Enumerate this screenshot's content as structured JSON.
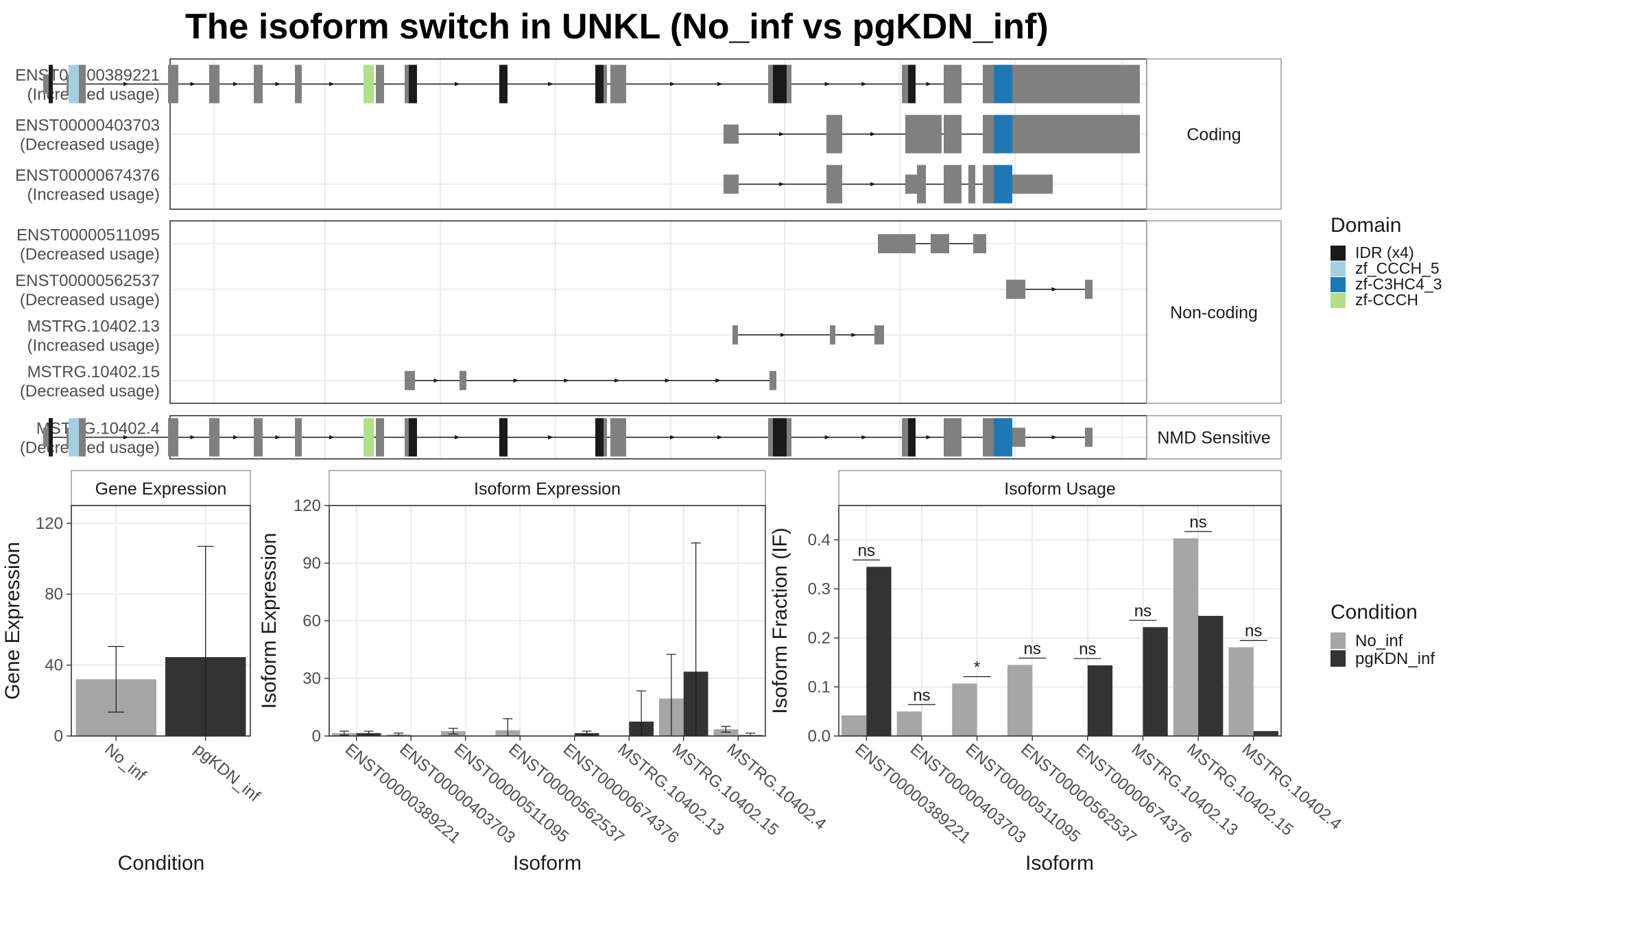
{
  "title": "The isoform switch in UNKL (No_inf vs pgKDN_inf)",
  "colors": {
    "exon": "#808080",
    "IDR (x4)": "#1a1a1a",
    "zf_CCCH_5": "#a6cee3",
    "zf-C3HC4_3": "#1f78b4",
    "zf-CCCH": "#b2df8a",
    "No_inf": "#a6a6a6",
    "pgKDN_inf": "#333333",
    "frame": "#333333",
    "grid": "#ebebeb",
    "strip": "#ffffff",
    "strip_border": "#a0a0a0"
  },
  "structure": {
    "panels": [
      {
        "strip": "Coding",
        "rows": [
          {
            "id": "ENST00000389221",
            "usage": "(Increased usage)",
            "exons": [
              [
                63,
                71,
                "s"
              ],
              [
                71,
                77,
                "IDR (x4)"
              ],
              [
                97,
                100,
                "s"
              ],
              [
                100,
                115,
                "zf_CCCH_5"
              ],
              [
                115,
                125,
                "t"
              ],
              [
                245,
                260,
                "t"
              ],
              [
                305,
                320,
                "t"
              ],
              [
                370,
                383,
                "t"
              ],
              [
                430,
                440,
                "t"
              ],
              [
                530,
                545,
                "zf-CCCH"
              ],
              [
                548,
                560,
                "t"
              ],
              [
                590,
                596,
                "t"
              ],
              [
                596,
                608,
                "IDR (x4)"
              ],
              [
                728,
                740,
                "IDR (x4)"
              ],
              [
                868,
                880,
                "IDR (x4)"
              ],
              [
                880,
                885,
                "t"
              ],
              [
                890,
                902,
                "t"
              ],
              [
                902,
                913,
                "t"
              ],
              [
                1120,
                1127,
                "t"
              ],
              [
                1127,
                1147,
                "IDR (x4)"
              ],
              [
                1147,
                1154,
                "t"
              ],
              [
                1315,
                1324,
                "t"
              ],
              [
                1324,
                1335,
                "IDR (x4)"
              ],
              [
                1376,
                1402,
                "t"
              ],
              [
                1433,
                1449,
                "t"
              ],
              [
                1449,
                1476,
                "zf-C3HC4_3"
              ],
              [
                1476,
                1662,
                "t"
              ]
            ]
          },
          {
            "id": "ENST00000403703",
            "usage": "(Decreased usage)",
            "exons": [
              [
                1055,
                1077,
                "s"
              ],
              [
                1205,
                1228,
                "t"
              ],
              [
                1320,
                1362,
                "t"
              ],
              [
                1362,
                1373,
                "t"
              ],
              [
                1376,
                1402,
                "t"
              ],
              [
                1433,
                1449,
                "t"
              ],
              [
                1449,
                1476,
                "zf-C3HC4_3"
              ],
              [
                1476,
                1662,
                "t"
              ]
            ]
          },
          {
            "id": "ENST00000674376",
            "usage": "(Increased usage)",
            "exons": [
              [
                1055,
                1077,
                "s"
              ],
              [
                1205,
                1228,
                "t"
              ],
              [
                1320,
                1337,
                "s"
              ],
              [
                1337,
                1350,
                "t"
              ],
              [
                1376,
                1402,
                "t"
              ],
              [
                1412,
                1422,
                "t"
              ],
              [
                1433,
                1449,
                "t"
              ],
              [
                1449,
                1476,
                "zf-C3HC4_3"
              ],
              [
                1476,
                1535,
                "s"
              ]
            ]
          }
        ]
      },
      {
        "strip": "Non-coding",
        "rows": [
          {
            "id": "ENST00000511095",
            "usage": "(Decreased usage)",
            "exons": [
              [
                1280,
                1335,
                "s"
              ],
              [
                1357,
                1384,
                "s"
              ],
              [
                1419,
                1438,
                "s"
              ]
            ]
          },
          {
            "id": "ENST00000562537",
            "usage": "(Decreased usage)",
            "exons": [
              [
                1467,
                1495,
                "s"
              ],
              [
                1582,
                1593,
                "s"
              ]
            ]
          },
          {
            "id": "MSTRG.10402.13",
            "usage": "(Increased usage)",
            "exons": [
              [
                1068,
                1076,
                "s"
              ],
              [
                1210,
                1218,
                "s"
              ],
              [
                1275,
                1289,
                "s"
              ]
            ]
          },
          {
            "id": "MSTRG.10402.15",
            "usage": "(Decreased usage)",
            "exons": [
              [
                590,
                605,
                "s"
              ],
              [
                670,
                680,
                "s"
              ],
              [
                1122,
                1132,
                "s"
              ]
            ]
          }
        ]
      },
      {
        "strip": "NMD Sensitive",
        "rows": [
          {
            "id": "MSTRG.10402.4",
            "usage": "(Decreased usage)",
            "exons": [
              [
                63,
                71,
                "s"
              ],
              [
                71,
                77,
                "IDR (x4)"
              ],
              [
                97,
                100,
                "s"
              ],
              [
                100,
                115,
                "zf_CCCH_5"
              ],
              [
                115,
                125,
                "t"
              ],
              [
                245,
                260,
                "t"
              ],
              [
                305,
                320,
                "t"
              ],
              [
                370,
                383,
                "t"
              ],
              [
                430,
                440,
                "t"
              ],
              [
                530,
                545,
                "zf-CCCH"
              ],
              [
                548,
                560,
                "t"
              ],
              [
                590,
                596,
                "t"
              ],
              [
                596,
                608,
                "IDR (x4)"
              ],
              [
                728,
                740,
                "IDR (x4)"
              ],
              [
                868,
                880,
                "IDR (x4)"
              ],
              [
                880,
                885,
                "t"
              ],
              [
                890,
                902,
                "t"
              ],
              [
                902,
                913,
                "t"
              ],
              [
                1120,
                1127,
                "t"
              ],
              [
                1127,
                1147,
                "IDR (x4)"
              ],
              [
                1147,
                1154,
                "t"
              ],
              [
                1315,
                1324,
                "t"
              ],
              [
                1324,
                1335,
                "IDR (x4)"
              ],
              [
                1376,
                1402,
                "t"
              ],
              [
                1433,
                1449,
                "t"
              ],
              [
                1449,
                1476,
                "zf-C3HC4_3"
              ],
              [
                1476,
                1495,
                "s"
              ],
              [
                1582,
                1593,
                "s"
              ]
            ]
          }
        ]
      }
    ]
  },
  "legend_domain": {
    "title": "Domain",
    "items": [
      "IDR (x4)",
      "zf_CCCH_5",
      "zf-C3HC4_3",
      "zf-CCCH"
    ]
  },
  "legend_condition": {
    "title": "Condition",
    "items": [
      "No_inf",
      "pgKDN_inf"
    ]
  },
  "chart_data": [
    {
      "type": "bar",
      "title": "Gene Expression",
      "xlabel": "Condition",
      "ylabel": "Gene Expression",
      "ylim": [
        0,
        130
      ],
      "yticks": [
        0,
        40,
        80,
        120
      ],
      "categories": [
        "No_inf",
        "pgKDN_inf"
      ],
      "values": [
        32,
        44.5
      ],
      "error_low": [
        13.5,
        0
      ],
      "error_high": [
        50.5,
        107
      ]
    },
    {
      "type": "bar",
      "title": "Isoform Expression",
      "xlabel": "Isoform",
      "ylabel": "Isoform Expression",
      "ylim": [
        0,
        120
      ],
      "yticks": [
        0,
        30,
        60,
        90,
        120
      ],
      "categories": [
        "ENST00000389221",
        "ENST00000403703",
        "ENST00000511095",
        "ENST00000562537",
        "ENST00000674376",
        "MSTRG.10402.13",
        "MSTRG.10402.15",
        "MSTRG.10402.4"
      ],
      "series": [
        {
          "name": "No_inf",
          "values": [
            1.5,
            0.8,
            2.5,
            3.0,
            0,
            0,
            19.5,
            3.5
          ],
          "error_low": [
            0.5,
            0.2,
            1.0,
            0,
            0,
            0,
            0,
            2.0
          ],
          "error_high": [
            2.5,
            1.5,
            4.0,
            9.0,
            0,
            0,
            42.5,
            5.0
          ]
        },
        {
          "name": "pgKDN_inf",
          "values": [
            1.5,
            0,
            0,
            0,
            1.5,
            7.5,
            33.5,
            0.5
          ],
          "error_low": [
            0.5,
            0,
            0,
            0,
            0.5,
            0,
            0,
            0
          ],
          "error_high": [
            2.5,
            0,
            0,
            0,
            2.5,
            23.5,
            100.5,
            1.5
          ]
        }
      ]
    },
    {
      "type": "bar",
      "title": "Isoform Usage",
      "xlabel": "Isoform",
      "ylabel": "Isoform Fraction (IF)",
      "ylim": [
        0,
        0.47
      ],
      "yticks": [
        "0.0",
        "0.1",
        "0.2",
        "0.3",
        "0.4"
      ],
      "categories": [
        "ENST00000389221",
        "ENST00000403703",
        "ENST00000511095",
        "ENST00000562537",
        "ENST00000674376",
        "MSTRG.10402.13",
        "MSTRG.10402.15",
        "MSTRG.10402.4"
      ],
      "series": [
        {
          "name": "No_inf",
          "values": [
            0.042,
            0.05,
            0.107,
            0.145,
            0,
            0,
            0.403,
            0.181
          ]
        },
        {
          "name": "pgKDN_inf",
          "values": [
            0.345,
            0,
            0,
            0,
            0.144,
            0.222,
            0.245,
            0.01
          ]
        }
      ],
      "significance": [
        "ns",
        "ns",
        "*",
        "ns",
        "ns",
        "ns",
        "ns",
        "ns"
      ]
    }
  ]
}
